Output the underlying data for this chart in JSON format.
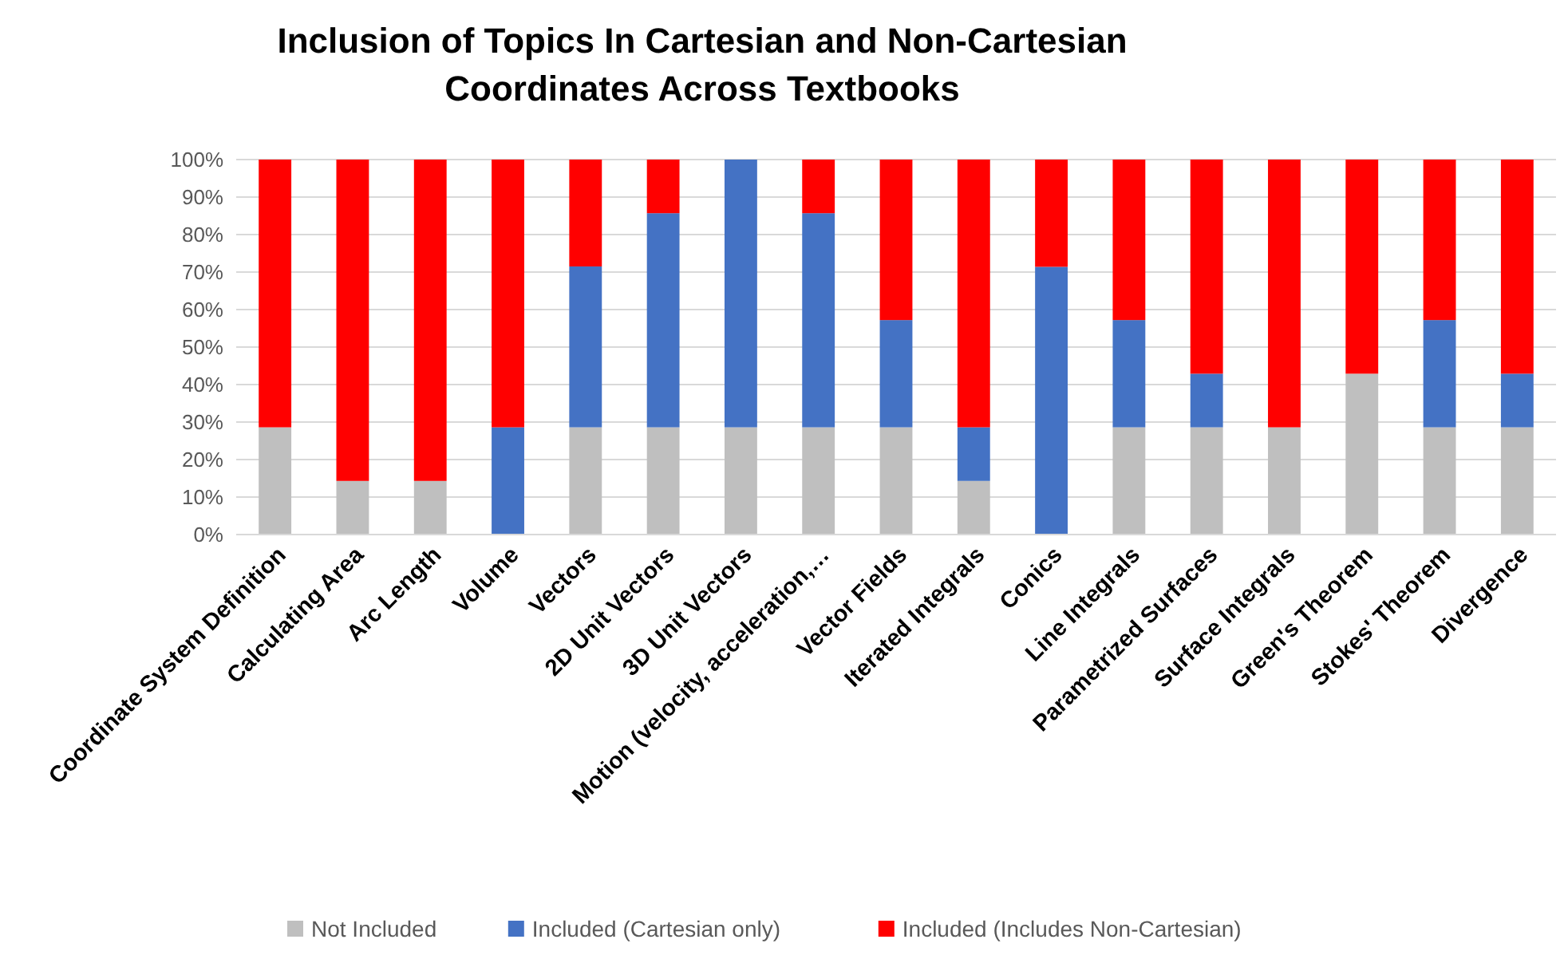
{
  "chart_data": {
    "type": "bar",
    "stacked": true,
    "title": "Inclusion of Topics In Cartesian and Non-Cartesian\nCoordinates Across Textbooks",
    "categories": [
      "Coordinate System Definition",
      "Calculating Area",
      "Arc Length",
      "Volume",
      "Vectors",
      "2D Unit Vectors",
      "3D Unit Vectors",
      "Motion (velocity, acceleration,…",
      "Vector Fields",
      "Iterated Integrals",
      "Conics",
      "Line Integrals",
      "Parametrized Surfaces",
      "Surface Integrals",
      "Green's Theorem",
      "Stokes' Theorem",
      "Divergence"
    ],
    "series": [
      {
        "name": "Not Included",
        "color": "#bfbfbf",
        "values": [
          28.6,
          14.3,
          14.3,
          0,
          28.6,
          28.6,
          28.6,
          28.6,
          28.6,
          14.3,
          0,
          28.6,
          28.6,
          28.6,
          42.9,
          28.6,
          28.6
        ]
      },
      {
        "name": "Included (Cartesian only)",
        "color": "#4472c4",
        "values": [
          0,
          0,
          0,
          28.6,
          42.9,
          57.1,
          71.4,
          57.1,
          28.6,
          14.3,
          71.4,
          28.6,
          14.3,
          0,
          0,
          28.6,
          14.3
        ]
      },
      {
        "name": "Included (Includes Non-Cartesian)",
        "color": "#ff0000",
        "values": [
          71.4,
          85.7,
          85.7,
          71.4,
          28.5,
          14.3,
          0,
          14.3,
          42.8,
          71.4,
          28.6,
          42.8,
          57.1,
          71.4,
          57.1,
          42.8,
          57.1
        ]
      }
    ],
    "ylim": [
      0,
      100
    ],
    "yticks": [
      {
        "value": 0,
        "label": "0%"
      },
      {
        "value": 10,
        "label": "10%"
      },
      {
        "value": 20,
        "label": "20%"
      },
      {
        "value": 30,
        "label": "30%"
      },
      {
        "value": 40,
        "label": "40%"
      },
      {
        "value": 50,
        "label": "50%"
      },
      {
        "value": 60,
        "label": "60%"
      },
      {
        "value": 70,
        "label": "70%"
      },
      {
        "value": 80,
        "label": "80%"
      },
      {
        "value": 90,
        "label": "90%"
      },
      {
        "value": 100,
        "label": "100%"
      }
    ],
    "grid": "y",
    "legend": "bottom"
  }
}
